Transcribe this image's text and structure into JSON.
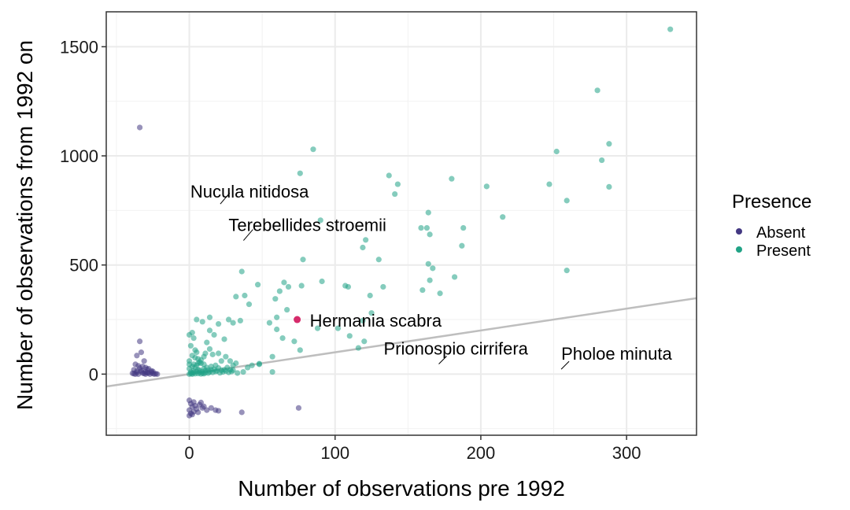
{
  "chart_data": {
    "type": "scatter",
    "xlabel": "Number of observations pre 1992",
    "ylabel": "Number of observations from 1992 on",
    "xlim": [
      -57,
      348
    ],
    "ylim": [
      -280,
      1660
    ],
    "x_ticks": [
      0,
      100,
      200,
      300
    ],
    "y_ticks": [
      0,
      500,
      1000,
      1500
    ],
    "grid": true,
    "reference_line": {
      "slope": 1,
      "intercept": 0,
      "color": "#bebebe"
    },
    "legend": {
      "title": "Presence",
      "position": "right",
      "entries": [
        {
          "label": "Absent",
          "color": "#433882"
        },
        {
          "label": "Present",
          "color": "#21a386"
        }
      ]
    },
    "highlight_color": "#d62b6b",
    "annotations": [
      {
        "label": "Nucula nitidosa",
        "x": 18,
        "y": 758
      },
      {
        "label": "Terebellides stroemii",
        "x": 35,
        "y": 598
      },
      {
        "label": "Hermania scabra",
        "x": 74,
        "y": 250
      },
      {
        "label": "Prionospio cirrifera",
        "x": 169,
        "y": 32
      },
      {
        "label": "Pholoe minuta",
        "x": 253,
        "y": 8
      }
    ],
    "series": [
      {
        "name": "Absent",
        "points": [
          [
            -34,
            1130
          ],
          [
            -34,
            150
          ],
          [
            -33,
            100
          ],
          [
            -36,
            85
          ],
          [
            -31,
            60
          ],
          [
            -37,
            45
          ],
          [
            -35,
            38
          ],
          [
            -30,
            30
          ],
          [
            -28,
            25
          ],
          [
            -38,
            20
          ],
          [
            -33,
            18
          ],
          [
            -26,
            15
          ],
          [
            -30,
            10
          ],
          [
            -36,
            8
          ],
          [
            -32,
            5
          ],
          [
            -28,
            5
          ],
          [
            -25,
            3
          ],
          [
            -38,
            2
          ],
          [
            -35,
            0
          ],
          [
            -30,
            0
          ],
          [
            -27,
            0
          ],
          [
            -24,
            0
          ],
          [
            -22,
            0
          ],
          [
            -37,
            0
          ],
          [
            -33,
            12
          ],
          [
            -29,
            22
          ],
          [
            -34,
            28
          ],
          [
            -31,
            3
          ],
          [
            -26,
            8
          ],
          [
            -23,
            2
          ],
          [
            -36,
            14
          ],
          [
            -32,
            35
          ],
          [
            -29,
            6
          ],
          [
            -25,
            12
          ],
          [
            -39,
            4
          ],
          [
            0,
            -120
          ],
          [
            1,
            -135
          ],
          [
            2,
            -150
          ],
          [
            0,
            -165
          ],
          [
            1,
            -180
          ],
          [
            3,
            -128
          ],
          [
            4,
            -145
          ],
          [
            5,
            -160
          ],
          [
            6,
            -175
          ],
          [
            2,
            -185
          ],
          [
            8,
            -130
          ],
          [
            10,
            -148
          ],
          [
            12,
            -165
          ],
          [
            3,
            -172
          ],
          [
            7,
            -140
          ],
          [
            9,
            -155
          ],
          [
            15,
            -155
          ],
          [
            18,
            -165
          ],
          [
            20,
            -168
          ],
          [
            36,
            -175
          ],
          [
            75,
            -155
          ],
          [
            0,
            -190
          ]
        ]
      },
      {
        "name": "Present",
        "points": [
          [
            330,
            1580
          ],
          [
            280,
            1300
          ],
          [
            288,
            1055
          ],
          [
            252,
            1020
          ],
          [
            283,
            980
          ],
          [
            247,
            870
          ],
          [
            288,
            858
          ],
          [
            259,
            795
          ],
          [
            215,
            720
          ],
          [
            204,
            860
          ],
          [
            180,
            895
          ],
          [
            188,
            670
          ],
          [
            187,
            588
          ],
          [
            164,
            740
          ],
          [
            163,
            670
          ],
          [
            159,
            670
          ],
          [
            165,
            640
          ],
          [
            164,
            505
          ],
          [
            167,
            485
          ],
          [
            165,
            430
          ],
          [
            160,
            385
          ],
          [
            172,
            370
          ],
          [
            182,
            445
          ],
          [
            259,
            475
          ],
          [
            137,
            910
          ],
          [
            143,
            870
          ],
          [
            141,
            825
          ],
          [
            130,
            525
          ],
          [
            121,
            615
          ],
          [
            119,
            580
          ],
          [
            124,
            360
          ],
          [
            133,
            400
          ],
          [
            125,
            280
          ],
          [
            119,
            245
          ],
          [
            120,
            150
          ],
          [
            116,
            120
          ],
          [
            85,
            1030
          ],
          [
            76,
            920
          ],
          [
            90,
            705
          ],
          [
            78,
            525
          ],
          [
            91,
            425
          ],
          [
            107,
            405
          ],
          [
            109,
            400
          ],
          [
            65,
            420
          ],
          [
            62,
            380
          ],
          [
            59,
            345
          ],
          [
            68,
            400
          ],
          [
            77,
            405
          ],
          [
            67,
            295
          ],
          [
            60,
            260
          ],
          [
            55,
            235
          ],
          [
            64,
            165
          ],
          [
            57,
            80
          ],
          [
            72,
            150
          ],
          [
            60,
            205
          ],
          [
            47,
            410
          ],
          [
            38,
            360
          ],
          [
            36,
            470
          ],
          [
            41,
            320
          ],
          [
            35,
            245
          ],
          [
            32,
            355
          ],
          [
            30,
            235
          ],
          [
            27,
            250
          ],
          [
            24,
            160
          ],
          [
            20,
            230
          ],
          [
            17,
            180
          ],
          [
            14,
            200
          ],
          [
            14,
            260
          ],
          [
            9,
            240
          ],
          [
            5,
            250
          ],
          [
            2,
            190
          ],
          [
            3,
            165
          ],
          [
            12,
            145
          ],
          [
            14,
            115
          ],
          [
            16,
            90
          ],
          [
            20,
            95
          ],
          [
            25,
            80
          ],
          [
            28,
            60
          ],
          [
            32,
            50
          ],
          [
            43,
            40
          ],
          [
            48,
            48
          ],
          [
            57,
            10
          ],
          [
            37,
            10
          ],
          [
            33,
            5
          ],
          [
            40,
            30
          ],
          [
            22,
            60
          ],
          [
            18,
            40
          ],
          [
            30,
            40
          ],
          [
            10,
            80
          ],
          [
            5,
            100
          ],
          [
            0,
            25
          ],
          [
            1,
            10
          ],
          [
            2,
            5
          ],
          [
            3,
            15
          ],
          [
            4,
            30
          ],
          [
            5,
            40
          ],
          [
            6,
            20
          ],
          [
            7,
            8
          ],
          [
            8,
            50
          ],
          [
            9,
            12
          ],
          [
            10,
            25
          ],
          [
            11,
            6
          ],
          [
            12,
            30
          ],
          [
            13,
            18
          ],
          [
            14,
            10
          ],
          [
            15,
            35
          ],
          [
            16,
            8
          ],
          [
            17,
            22
          ],
          [
            18,
            12
          ],
          [
            19,
            15
          ],
          [
            20,
            28
          ],
          [
            21,
            6
          ],
          [
            22,
            18
          ],
          [
            23,
            10
          ],
          [
            24,
            20
          ],
          [
            25,
            14
          ],
          [
            26,
            30
          ],
          [
            27,
            8
          ],
          [
            28,
            20
          ],
          [
            29,
            12
          ],
          [
            30,
            18
          ],
          [
            0,
            60
          ],
          [
            2,
            85
          ],
          [
            4,
            110
          ],
          [
            6,
            70
          ],
          [
            1,
            130
          ],
          [
            3,
            45
          ],
          [
            7,
            55
          ],
          [
            0,
            0
          ],
          [
            2,
            0
          ],
          [
            4,
            2
          ],
          [
            6,
            3
          ],
          [
            8,
            1
          ],
          [
            10,
            2
          ],
          [
            1,
            3
          ],
          [
            3,
            7
          ],
          [
            5,
            12
          ],
          [
            7,
            18
          ],
          [
            9,
            4
          ],
          [
            11,
            16
          ],
          [
            13,
            5
          ],
          [
            15,
            20
          ],
          [
            0,
            45
          ],
          [
            2,
            35
          ],
          [
            4,
            75
          ],
          [
            6,
            50
          ],
          [
            8,
            65
          ],
          [
            10,
            45
          ],
          [
            0,
            180
          ],
          [
            11,
            95
          ],
          [
            48,
            45
          ],
          [
            110,
            175
          ],
          [
            88,
            210
          ],
          [
            76,
            110
          ],
          [
            102,
            210
          ]
        ]
      }
    ]
  }
}
